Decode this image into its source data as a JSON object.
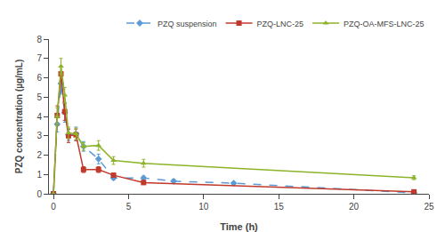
{
  "chart_data": {
    "type": "line",
    "xlabel": "Time (h)",
    "ylabel": "PZQ concentration (µg/mL)",
    "xlim": [
      -0.3,
      25
    ],
    "ylim": [
      0,
      8
    ],
    "xticks": [
      0,
      5,
      10,
      15,
      20,
      25
    ],
    "yticks": [
      0,
      1,
      2,
      3,
      4,
      5,
      6,
      7,
      8
    ],
    "grid": false,
    "legend": "upper right",
    "series": [
      {
        "name": "PZQ suspension",
        "color": "#5b9bd5",
        "line_style": "dashed",
        "marker": "diamond",
        "x": [
          0,
          0.25,
          0.5,
          0.75,
          1.0,
          1.5,
          2.0,
          3.0,
          4.0,
          6.0,
          8.0,
          12.0,
          24.0
        ],
        "values": [
          0.0,
          3.6,
          5.7,
          4.2,
          3.05,
          3.1,
          2.45,
          1.8,
          0.82,
          0.82,
          0.65,
          0.55,
          0.05
        ],
        "yerr": [
          0.0,
          0.4,
          0.55,
          0.5,
          0.3,
          0.35,
          0.25,
          0.25,
          0.1,
          0.1,
          0.1,
          0.05,
          0.05
        ]
      },
      {
        "name": "PZQ-LNC-25",
        "color": "#c0392b",
        "line_style": "solid",
        "marker": "square",
        "x": [
          0,
          0.25,
          0.5,
          0.75,
          1.0,
          1.5,
          2.0,
          3.0,
          4.0,
          6.0,
          24.0
        ],
        "values": [
          0.0,
          4.05,
          6.2,
          4.25,
          3.0,
          3.05,
          1.25,
          1.25,
          0.96,
          0.58,
          0.1
        ],
        "yerr": [
          0.0,
          0.5,
          0.35,
          0.45,
          0.35,
          0.3,
          0.15,
          0.15,
          0.1,
          0.1,
          0.05
        ]
      },
      {
        "name": "PZQ-OA-MFS-LNC-25",
        "color": "#8db32a",
        "line_style": "solid",
        "marker": "triangle",
        "x": [
          0,
          0.25,
          0.5,
          0.75,
          1.0,
          1.5,
          2.0,
          3.0,
          4.0,
          6.0,
          24.0
        ],
        "values": [
          0.0,
          4.0,
          6.6,
          5.1,
          3.15,
          3.1,
          2.45,
          2.5,
          1.72,
          1.58,
          0.83
        ],
        "yerr": [
          0.0,
          0.45,
          0.4,
          0.4,
          0.3,
          0.3,
          0.2,
          0.25,
          0.2,
          0.2,
          0.1
        ]
      }
    ]
  }
}
